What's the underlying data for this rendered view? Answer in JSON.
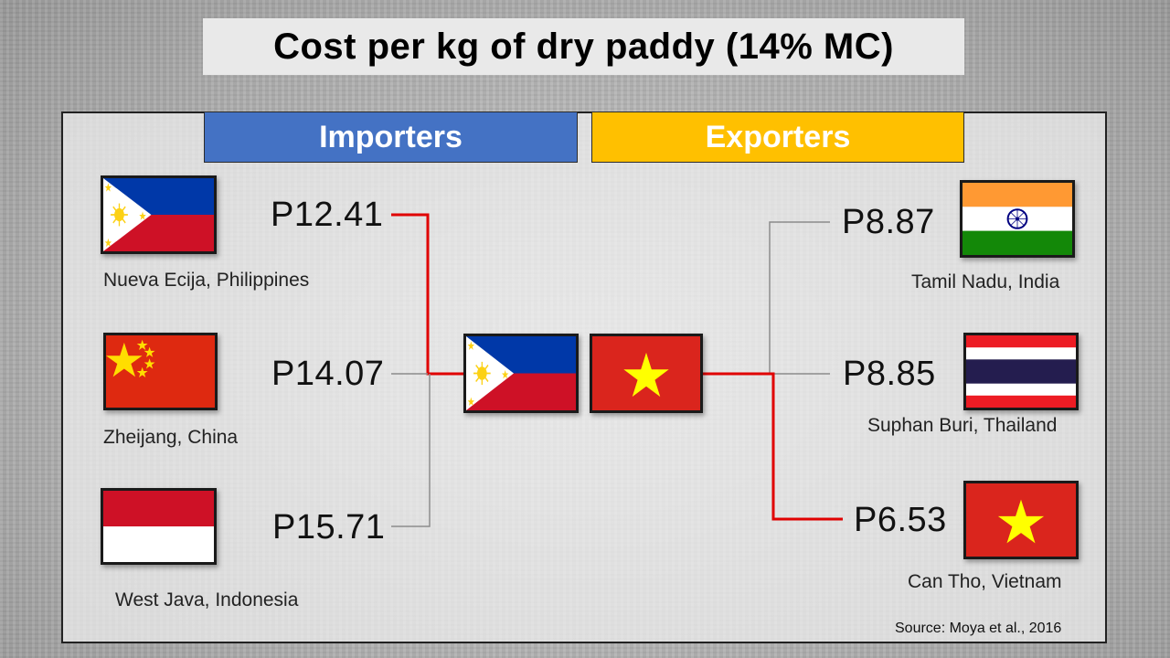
{
  "title": "Cost per kg of dry paddy (14% MC)",
  "headers": {
    "importers": "Importers",
    "exporters": "Exporters"
  },
  "importers": [
    {
      "price": "P12.41",
      "place": "Nueva Ecija, Philippines",
      "flag": "philippines-flag"
    },
    {
      "price": "P14.07",
      "place": "Zheijang, China",
      "flag": "china-flag"
    },
    {
      "price": "P15.71",
      "place": "West Java, Indonesia",
      "flag": "indonesia-flag"
    }
  ],
  "exporters": [
    {
      "price": "P8.87",
      "place": "Tamil Nadu, India",
      "flag": "india-flag"
    },
    {
      "price": "P8.85",
      "place": "Suphan Buri, Thailand",
      "flag": "thailand-flag"
    },
    {
      "price": "P6.53",
      "place": "Can Tho, Vietnam",
      "flag": "vietnam-flag"
    }
  ],
  "winners": {
    "importers": "philippines-flag",
    "exporters": "vietnam-flag"
  },
  "colors": {
    "importers": "#4472c4",
    "exporters": "#ffc000",
    "winner_line": "#e00000",
    "other_line": "#8c8c8c"
  },
  "source": "Source: Moya et al., 2016"
}
